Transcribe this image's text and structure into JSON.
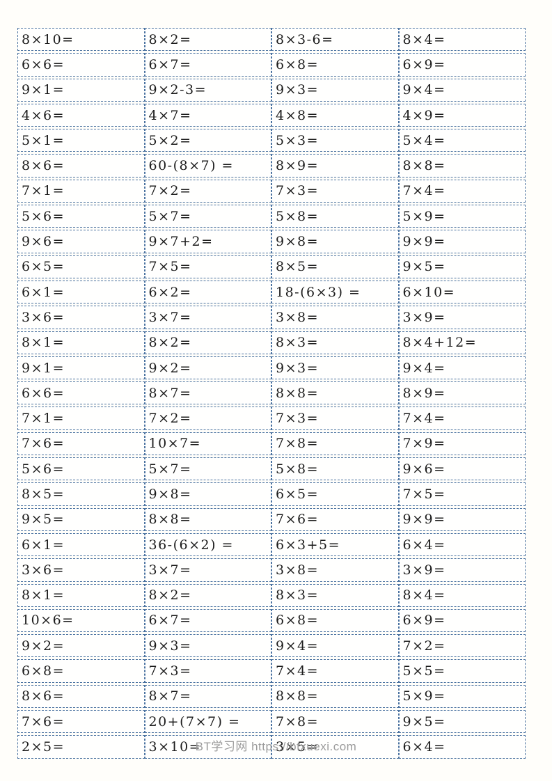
{
  "page": {
    "watermark": "BT学习网 https://btxuexi.com"
  },
  "colors": {
    "border_dashed": "#4a72a0",
    "problem_text": "#1c1c1c",
    "watermark_text": "#9b9b9b",
    "page_background": "#fffefa"
  },
  "worksheet": {
    "type": "multiplication-practice-grid",
    "columns": 4,
    "row_count": 29,
    "rows": [
      [
        "8×10=",
        "8×2=",
        "8×3-6=",
        "8×4="
      ],
      [
        "6×6=",
        "6×7=",
        "6×8=",
        "6×9="
      ],
      [
        "9×1=",
        "9×2-3=",
        "9×3=",
        "9×4="
      ],
      [
        "4×6=",
        "4×7=",
        "4×8=",
        "4×9="
      ],
      [
        "5×1=",
        "5×2=",
        "5×3=",
        "5×4="
      ],
      [
        "8×6=",
        "60-(8×7) =",
        "8×9=",
        "8×8="
      ],
      [
        "7×1=",
        "7×2=",
        "7×3=",
        "7×4="
      ],
      [
        "5×6=",
        "5×7=",
        "5×8=",
        "5×9="
      ],
      [
        "9×6=",
        "9×7+2=",
        "9×8=",
        "9×9="
      ],
      [
        "6×5=",
        "7×5=",
        "8×5=",
        "9×5="
      ],
      [
        "6×1=",
        "6×2=",
        "18-(6×3) =",
        "6×10="
      ],
      [
        "3×6=",
        "3×7=",
        "3×8=",
        "3×9="
      ],
      [
        "8×1=",
        "8×2=",
        "8×3=",
        "8×4+12="
      ],
      [
        "9×1=",
        "9×2=",
        "9×3=",
        "9×4="
      ],
      [
        "6×6=",
        "8×7=",
        "8×8=",
        "8×9="
      ],
      [
        "7×1=",
        "7×2=",
        "7×3=",
        "7×4="
      ],
      [
        "7×6=",
        "10×7=",
        "7×8=",
        "7×9="
      ],
      [
        "5×6=",
        "5×7=",
        "5×8=",
        "9×6="
      ],
      [
        "8×5=",
        "9×8=",
        "6×5=",
        "7×5="
      ],
      [
        "9×5=",
        "8×8=",
        "7×6=",
        "9×9="
      ],
      [
        "6×1=",
        "36-(6×2) =",
        "6×3+5=",
        "6×4="
      ],
      [
        "3×6=",
        "3×7=",
        "3×8=",
        "3×9="
      ],
      [
        "8×1=",
        "8×2=",
        "8×3=",
        "8×4="
      ],
      [
        "10×6=",
        "6×7=",
        "6×8=",
        "6×9="
      ],
      [
        "9×2=",
        "9×3=",
        "9×4=",
        "7×2="
      ],
      [
        "6×8=",
        "7×3=",
        "7×4=",
        "5×5="
      ],
      [
        "8×6=",
        "8×7=",
        "8×8=",
        "5×9="
      ],
      [
        "7×6=",
        "20+(7×7) =",
        "7×8=",
        "9×5="
      ],
      [
        "2×5=",
        "3×10=",
        "3×5=",
        "6×4="
      ]
    ]
  }
}
